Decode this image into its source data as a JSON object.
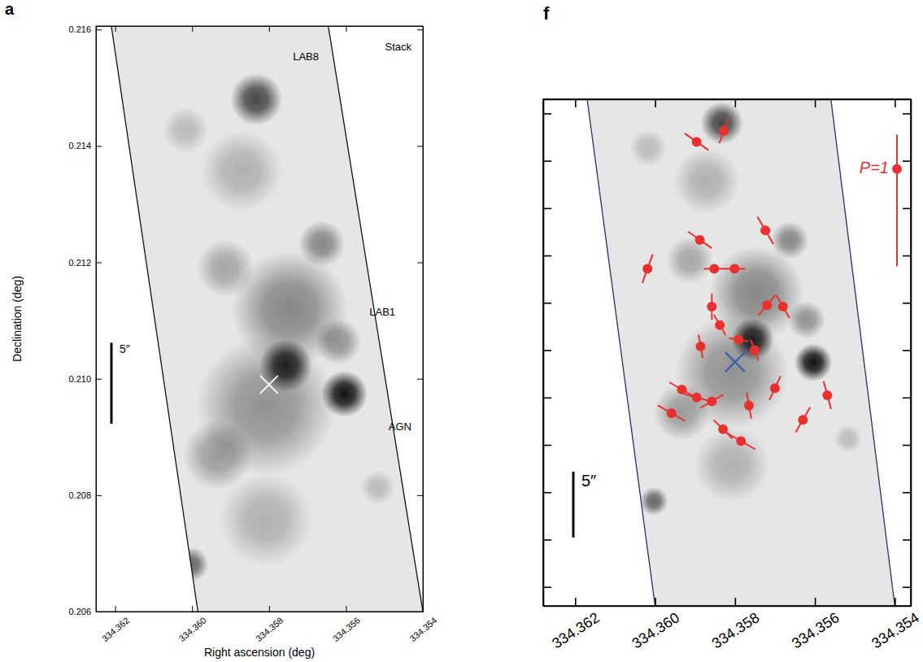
{
  "chart_data": [
    {
      "type": "image",
      "panel": "a",
      "title": "Stack",
      "xlabel": "Right ascension (deg)",
      "ylabel": "Declination (deg)",
      "xlim": [
        334.3625,
        334.354
      ],
      "ylim": [
        0.206,
        0.21606
      ],
      "xticks": [
        334.362,
        {
          "value": 334.36,
          "label": "334.360"
        },
        334.358,
        334.356,
        334.354
      ],
      "yticks": [
        0.206,
        0.208,
        {
          "value": 0.21,
          "label": "0.210"
        },
        0.212,
        0.214,
        0.216
      ],
      "annotations": [
        {
          "text": "LAB8"
        },
        {
          "text": "LAB1"
        },
        {
          "text": "AGN"
        }
      ],
      "scale_bar": {
        "label": "5″",
        "length": 0.00139
      },
      "cross": {
        "x": 334.358,
        "y": 0.2099,
        "color": "#ffffff"
      },
      "footprint": {
        "left": {
          "x": [
            334.3621,
            334.35985
          ],
          "y": [
            0.21606,
            0.206
          ]
        },
        "right": {
          "x": [
            334.35646,
            334.354
          ],
          "y": [
            0.21606,
            0.206
          ]
        }
      },
      "emission": [
        {
          "ra": 334.35833,
          "dec": 0.2148,
          "r": 0.00045,
          "level": 0.75
        },
        {
          "ra": 334.35756,
          "dec": 0.21023,
          "r": 0.00045,
          "level": 0.95
        },
        {
          "ra": 334.35604,
          "dec": 0.20974,
          "r": 0.0004,
          "level": 1
        },
        {
          "ra": 334.35746,
          "dec": 0.2112,
          "r": 0.001,
          "level": 0.45
        },
        {
          "ra": 334.35808,
          "dec": 0.20953,
          "r": 0.0012,
          "level": 0.4
        },
        {
          "ra": 334.35663,
          "dec": 0.21232,
          "r": 0.0004,
          "level": 0.45
        },
        {
          "ra": 334.35913,
          "dec": 0.2119,
          "r": 0.0005,
          "level": 0.3
        },
        {
          "ra": 334.35871,
          "dec": 0.21357,
          "r": 0.0007,
          "level": 0.25
        },
        {
          "ra": 334.36017,
          "dec": 0.21427,
          "r": 0.0004,
          "level": 0.2
        },
        {
          "ra": 334.35517,
          "dec": 0.20813,
          "r": 0.0003,
          "level": 0.2
        },
        {
          "ra": 334.35808,
          "dec": 0.20758,
          "r": 0.0008,
          "level": 0.25
        },
        {
          "ra": 334.35621,
          "dec": 0.21064,
          "r": 0.0004,
          "level": 0.4
        },
        {
          "ra": 334.35933,
          "dec": 0.20869,
          "r": 0.0006,
          "level": 0.35
        },
        {
          "ra": 334.36003,
          "dec": 0.20681,
          "r": 0.0003,
          "level": 0.6
        }
      ]
    },
    {
      "type": "vector",
      "panel": "f",
      "tick_labels": "x",
      "xlim": [
        334.3628,
        334.3536
      ],
      "ylim": [
        0.2046,
        0.2153
      ],
      "xticks": [
        334.362,
        {
          "value": 334.36,
          "label": "334.360"
        },
        334.358,
        334.356,
        334.354
      ],
      "yticks": [
        0.205,
        0.206,
        0.207,
        0.208,
        0.209,
        0.21,
        0.211,
        0.212,
        0.213,
        0.214,
        0.215
      ],
      "scale_bar": {
        "label": "5″",
        "length": 0.00139
      },
      "cross": {
        "x": 334.358,
        "y": 0.20975,
        "color": "#3a5fae"
      },
      "p_reference": {
        "label": "P=1",
        "value": 1
      },
      "footprint": {
        "left": {
          "x": [
            334.3617,
            334.36
          ],
          "y": [
            0.2153,
            0.2046
          ]
        },
        "right": {
          "x": [
            334.3556,
            334.354
          ],
          "y": [
            0.2153,
            0.2046
          ]
        }
      },
      "series": [
        {
          "color": "#e8312f",
          "marker": "circle",
          "x": [
            334.35896,
            334.35828,
            334.35888,
            334.35724,
            334.36019,
            334.35852,
            334.35801,
            334.35858,
            334.35838,
            334.3572,
            334.3568,
            334.35886,
            334.35791,
            334.35751,
            334.357,
            334.35933,
            334.35896,
            334.35858,
            334.35765,
            334.35569,
            334.35959,
            334.3583,
            334.3563,
            334.35785
          ],
          "values": [
            0.2144,
            0.21463,
            0.21233,
            0.21253,
            0.21172,
            0.21172,
            0.21172,
            0.21092,
            0.21053,
            0.21095,
            0.21092,
            0.21008,
            0.21022,
            0.21,
            0.2092,
            0.20917,
            0.209,
            0.20892,
            0.20883,
            0.20905,
            0.20867,
            0.20833,
            0.20853,
            0.20808
          ],
          "p": [
            0.22,
            0.2,
            0.22,
            0.24,
            0.23,
            0.16,
            0.16,
            0.2,
            0.18,
            0.2,
            0.2,
            0.18,
            0.15,
            0.17,
            0.2,
            0.22,
            0.2,
            0.2,
            0.2,
            0.22,
            0.24,
            0.2,
            0.22,
            0.25
          ],
          "angle": [
            55,
            -20,
            55,
            30,
            -20,
            90,
            90,
            0,
            30,
            -40,
            30,
            10,
            80,
            20,
            -25,
            60,
            75,
            -60,
            10,
            15,
            60,
            45,
            -30,
            60
          ]
        }
      ],
      "emission": [
        {
          "ra": 334.35833,
          "dec": 0.2148,
          "r": 0.00045,
          "level": 0.75
        },
        {
          "ra": 334.35756,
          "dec": 0.21023,
          "r": 0.00045,
          "level": 0.95
        },
        {
          "ra": 334.35604,
          "dec": 0.20974,
          "r": 0.0004,
          "level": 1
        },
        {
          "ra": 334.35746,
          "dec": 0.2112,
          "r": 0.001,
          "level": 0.45
        },
        {
          "ra": 334.35808,
          "dec": 0.20953,
          "r": 0.0012,
          "level": 0.4
        },
        {
          "ra": 334.35663,
          "dec": 0.21232,
          "r": 0.0004,
          "level": 0.45
        },
        {
          "ra": 334.35913,
          "dec": 0.2119,
          "r": 0.0005,
          "level": 0.3
        },
        {
          "ra": 334.35871,
          "dec": 0.21357,
          "r": 0.0007,
          "level": 0.25
        },
        {
          "ra": 334.36017,
          "dec": 0.21427,
          "r": 0.0004,
          "level": 0.2
        },
        {
          "ra": 334.35517,
          "dec": 0.20813,
          "r": 0.0003,
          "level": 0.2
        },
        {
          "ra": 334.35808,
          "dec": 0.20758,
          "r": 0.0008,
          "level": 0.25
        },
        {
          "ra": 334.35621,
          "dec": 0.21064,
          "r": 0.0004,
          "level": 0.4
        },
        {
          "ra": 334.35933,
          "dec": 0.20869,
          "r": 0.0006,
          "level": 0.35
        },
        {
          "ra": 334.36003,
          "dec": 0.20681,
          "r": 0.0003,
          "level": 0.6
        }
      ]
    }
  ]
}
